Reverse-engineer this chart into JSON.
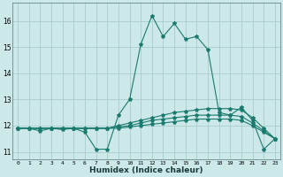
{
  "xlabel": "Humidex (Indice chaleur)",
  "background_color": "#cce8e8",
  "grid_color": "#aacccc",
  "line_color": "#1a7a6e",
  "xlim": [
    -0.5,
    23.5
  ],
  "ylim": [
    10.7,
    16.7
  ],
  "yticks": [
    11,
    12,
    13,
    14,
    15,
    16
  ],
  "xticks": [
    0,
    1,
    2,
    3,
    4,
    5,
    6,
    7,
    8,
    9,
    10,
    11,
    12,
    13,
    14,
    15,
    16,
    17,
    18,
    19,
    20,
    21,
    22,
    23
  ],
  "series": [
    [
      11.9,
      11.9,
      11.8,
      11.9,
      11.85,
      11.9,
      11.75,
      11.1,
      11.1,
      12.4,
      13.0,
      15.1,
      16.2,
      15.4,
      15.9,
      15.3,
      15.4,
      14.9,
      12.5,
      12.4,
      12.7,
      12.2,
      11.1,
      11.5
    ],
    [
      11.9,
      11.9,
      11.9,
      11.9,
      11.9,
      11.9,
      11.9,
      11.9,
      11.9,
      12.0,
      12.1,
      12.2,
      12.3,
      12.4,
      12.5,
      12.55,
      12.6,
      12.65,
      12.65,
      12.65,
      12.6,
      12.3,
      11.9,
      11.5
    ],
    [
      11.9,
      11.9,
      11.9,
      11.9,
      11.9,
      11.9,
      11.9,
      11.9,
      11.9,
      11.95,
      12.0,
      12.1,
      12.2,
      12.25,
      12.3,
      12.35,
      12.4,
      12.4,
      12.4,
      12.4,
      12.35,
      12.1,
      11.8,
      11.5
    ],
    [
      11.9,
      11.9,
      11.9,
      11.9,
      11.9,
      11.9,
      11.9,
      11.9,
      11.9,
      11.9,
      11.95,
      12.0,
      12.05,
      12.1,
      12.15,
      12.2,
      12.25,
      12.25,
      12.25,
      12.25,
      12.2,
      12.0,
      11.75,
      11.5
    ]
  ]
}
